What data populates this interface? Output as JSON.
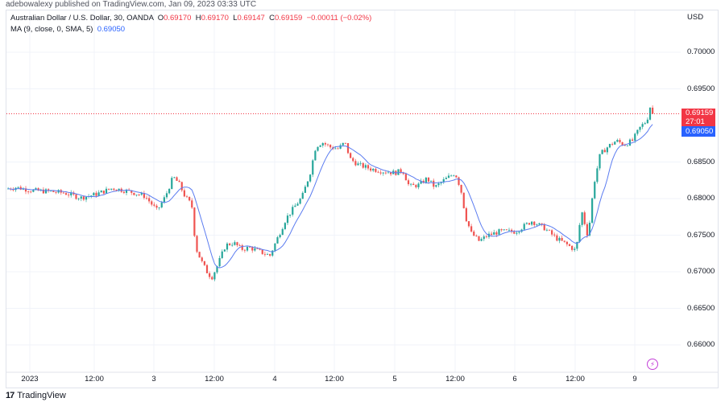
{
  "publisher": "adebowalexy published on TradingView.com, Jan 09, 2023 03:33 UTC",
  "legend": {
    "symbol": "Australian Dollar / U.S. Dollar, 30, OANDA",
    "o_label": "O",
    "o": "0.69170",
    "h_label": "H",
    "h": "0.69170",
    "l_label": "L",
    "l": "0.69147",
    "c_label": "C",
    "c": "0.69159",
    "change": "−0.00011 (−0.02%)",
    "ma_label": "MA (9, close, 0, SMA, 5)",
    "ma_value": "0.69050"
  },
  "currency": "USD",
  "price_tags": {
    "last_price": "0.69159",
    "countdown": "27:01",
    "ma_price": "0.69050"
  },
  "colors": {
    "up": "#26a69a",
    "down": "#ef5350",
    "ma": "#5b7cf0",
    "grid": "#f0f3fa",
    "last_line": "#f23645",
    "ma_tag": "#2962ff",
    "last_tag": "#f23645",
    "flash_icon": "#c440d8"
  },
  "icons": {
    "flash": "lightning-circle-icon",
    "logo": "tradingview-logo-icon"
  },
  "branding": {
    "logo_mark": "17",
    "logo_text": "TradingView"
  },
  "chart_data": {
    "type": "candlestick",
    "title": "Australian Dollar / U.S. Dollar, 30, OANDA",
    "xlabel": "",
    "ylabel": "USD",
    "ylim": [
      0.6555,
      0.7065
    ],
    "grid": true,
    "y_ticks": [
      "0.70000",
      "0.69500",
      "0.68500",
      "0.68000",
      "0.67500",
      "0.67000",
      "0.66500",
      "0.66000"
    ],
    "y_tick_values": [
      0.7,
      0.695,
      0.685,
      0.68,
      0.675,
      0.67,
      0.665,
      0.66
    ],
    "x_ticks": [
      {
        "label": "2023",
        "x": 37
      },
      {
        "label": "12:00",
        "x": 117
      },
      {
        "label": "3",
        "x": 191
      },
      {
        "label": "12:00",
        "x": 266
      },
      {
        "label": "4",
        "x": 341
      },
      {
        "label": "12:00",
        "x": 415
      },
      {
        "label": "5",
        "x": 490
      },
      {
        "label": "12:00",
        "x": 565
      },
      {
        "label": "6",
        "x": 639
      },
      {
        "label": "12:00",
        "x": 714
      },
      {
        "label": "9",
        "x": 788
      }
    ],
    "last_price": 0.69159,
    "ma_last": 0.6905,
    "indicator": "MA (9, close, 0, SMA, 5)",
    "close_path": [
      [
        7,
        0.68132
      ],
      [
        20,
        0.68154
      ],
      [
        40,
        0.6811
      ],
      [
        60,
        0.68099
      ],
      [
        80,
        0.68077
      ],
      [
        100,
        0.68011
      ],
      [
        118,
        0.68055
      ],
      [
        140,
        0.68143
      ],
      [
        160,
        0.68099
      ],
      [
        180,
        0.68033
      ],
      [
        195,
        0.67835
      ],
      [
        205,
        0.68022
      ],
      [
        215,
        0.68297
      ],
      [
        222,
        0.68209
      ],
      [
        230,
        0.68022
      ],
      [
        238,
        0.67912
      ],
      [
        243,
        0.6733
      ],
      [
        250,
        0.67143
      ],
      [
        258,
        0.66978
      ],
      [
        263,
        0.66923
      ],
      [
        270,
        0.67088
      ],
      [
        280,
        0.67363
      ],
      [
        290,
        0.67396
      ],
      [
        300,
        0.67308
      ],
      [
        310,
        0.6733
      ],
      [
        320,
        0.67286
      ],
      [
        335,
        0.6722
      ],
      [
        345,
        0.67473
      ],
      [
        355,
        0.67725
      ],
      [
        365,
        0.67879
      ],
      [
        375,
        0.68022
      ],
      [
        385,
        0.68352
      ],
      [
        392,
        0.68714
      ],
      [
        400,
        0.68769
      ],
      [
        410,
        0.68703
      ],
      [
        420,
        0.68681
      ],
      [
        428,
        0.68769
      ],
      [
        435,
        0.68539
      ],
      [
        445,
        0.68462
      ],
      [
        460,
        0.68407
      ],
      [
        475,
        0.68374
      ],
      [
        490,
        0.68352
      ],
      [
        500,
        0.68385
      ],
      [
        508,
        0.68165
      ],
      [
        520,
        0.68187
      ],
      [
        530,
        0.68275
      ],
      [
        540,
        0.68154
      ],
      [
        550,
        0.68242
      ],
      [
        565,
        0.68352
      ],
      [
        572,
        0.68132
      ],
      [
        578,
        0.67747
      ],
      [
        585,
        0.67527
      ],
      [
        595,
        0.67418
      ],
      [
        605,
        0.67495
      ],
      [
        620,
        0.67549
      ],
      [
        640,
        0.67549
      ],
      [
        660,
        0.67692
      ],
      [
        675,
        0.67604
      ],
      [
        690,
        0.67462
      ],
      [
        705,
        0.67363
      ],
      [
        715,
        0.67286
      ],
      [
        722,
        0.67835
      ],
      [
        730,
        0.67473
      ],
      [
        737,
        0.68187
      ],
      [
        745,
        0.68604
      ],
      [
        755,
        0.68714
      ],
      [
        765,
        0.68791
      ],
      [
        775,
        0.68736
      ],
      [
        785,
        0.68791
      ],
      [
        795,
        0.68978
      ],
      [
        803,
        0.69066
      ],
      [
        807,
        0.69253
      ],
      [
        812,
        0.69159
      ]
    ]
  }
}
